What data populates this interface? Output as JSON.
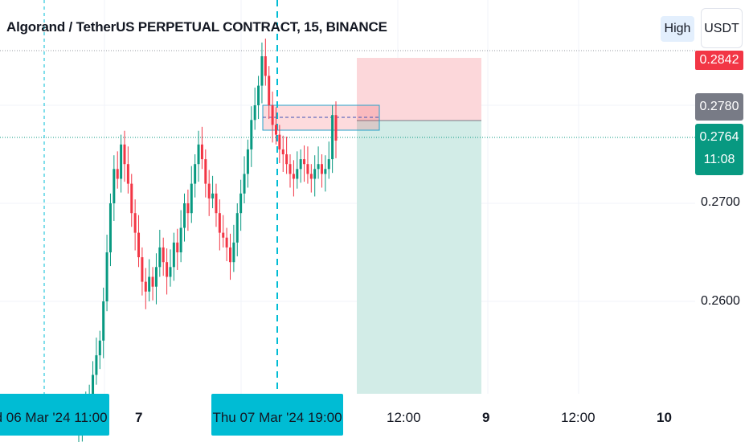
{
  "chart_title": "Algorand / TetherUS PERPETUAL CONTRACT, 15, BINANCE",
  "toolbar": {
    "high_label": "High",
    "currency_label": "USDT"
  },
  "price_tags": {
    "top_partial": "0.2842",
    "mark_price": "0.2780",
    "last_price": "0.2764",
    "countdown": "11:08"
  },
  "colors": {
    "up": "#089981",
    "down": "#f23645",
    "crosshair": "#00bcd4",
    "stop_zone": "#fcd7da",
    "target_zone": "#d2ece7",
    "mark_tag": "#787b86"
  },
  "chart_data": {
    "type": "candlestick",
    "symbol": "Algorand / TetherUS PERPETUAL CONTRACT",
    "interval": "15",
    "exchange": "BINANCE",
    "y_ticks": [
      "0.2700",
      "0.2600"
    ],
    "x_ticks": [
      "7",
      "12:00",
      "9",
      "12:00",
      "10"
    ],
    "x_badges": [
      "Wed 06 Mar '24   11:00",
      "Thu 07 Mar '24   19:00"
    ],
    "current_price": 0.2764,
    "mark_price": 0.278,
    "position": {
      "entry": 0.2771,
      "stop": 0.2842,
      "target": 0.2465
    },
    "supply_zone": {
      "top": 0.2793,
      "bottom": 0.2768,
      "mid": 0.2779
    },
    "closes": [
      0.2475,
      0.248,
      0.249,
      0.2505,
      0.2525,
      0.2545,
      0.256,
      0.26,
      0.265,
      0.27,
      0.2735,
      0.2725,
      0.276,
      0.274,
      0.272,
      0.269,
      0.267,
      0.2645,
      0.262,
      0.261,
      0.2625,
      0.2615,
      0.2635,
      0.2655,
      0.264,
      0.2625,
      0.2635,
      0.266,
      0.265,
      0.2675,
      0.27,
      0.269,
      0.272,
      0.274,
      0.276,
      0.2745,
      0.272,
      0.2705,
      0.271,
      0.269,
      0.267,
      0.2665,
      0.2655,
      0.264,
      0.266,
      0.269,
      0.271,
      0.273,
      0.2755,
      0.2785,
      0.28,
      0.282,
      0.285,
      0.283,
      0.28,
      0.278,
      0.277,
      0.2755,
      0.275,
      0.274,
      0.273,
      0.2725,
      0.2735,
      0.2745,
      0.274,
      0.273,
      0.2725,
      0.2735,
      0.274,
      0.273,
      0.2735,
      0.2745,
      0.279,
      0.2764
    ]
  }
}
